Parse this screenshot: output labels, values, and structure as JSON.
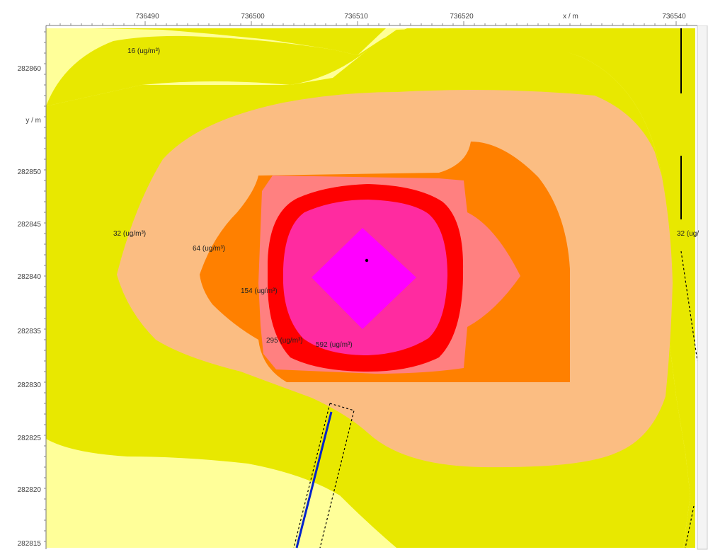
{
  "axes": {
    "x_title": "x / m",
    "y_title": "y / m",
    "x_ticks": [
      "736490",
      "736500",
      "736510",
      "736520",
      "736540"
    ],
    "y_ticks": [
      "282860",
      "282850",
      "282845",
      "282840",
      "282835",
      "282830",
      "282825",
      "282820",
      "282815"
    ]
  },
  "contours": {
    "labels": [
      "16 (ug/m³)",
      "32 (ug/m³)",
      "64 (ug/m³)",
      "154 (ug/m³)",
      "295 (ug/m³)",
      "592 (ug/m³)",
      "32 (ug/"
    ]
  },
  "colors": {
    "frame_bg": "#ffffff",
    "plot_bg": "#ffff99",
    "level_1": "#e8e800",
    "level_2": "#fbbd82",
    "level_3": "#ff8000",
    "level_4": "#ff8080",
    "level_5": "#ff0000",
    "level_6": "#ff2ba0",
    "level_7": "#ff00ff",
    "line_source": "#0022cc",
    "dashed_outline": "#000000"
  }
}
